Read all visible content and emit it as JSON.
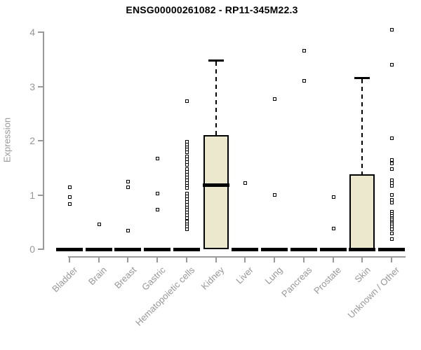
{
  "chart_data": {
    "type": "boxplot-scatter",
    "title": "ENSG00000261082 - RP11-345M22.3",
    "ylabel": "Expression",
    "ylim": [
      0,
      4
    ],
    "y_ticks": [
      0,
      1,
      2,
      3,
      4
    ],
    "grid": false,
    "legend": "none",
    "box_fill_color": "#ece8cd",
    "box_border_color": "#000000",
    "axis_color": "#9a9a9a",
    "tick_label_color": "#979797",
    "categories": [
      "Bladder",
      "Brain",
      "Breast",
      "Gastric",
      "Hematopoietic cells",
      "Kidney",
      "Liver",
      "Lung",
      "Pancreas",
      "Prostate",
      "Skin",
      "Unknown / Other"
    ],
    "series": [
      {
        "category": "Bladder",
        "q1": 0,
        "median": 0,
        "q3": 0,
        "whisker_high": 0,
        "points": [
          1.15,
          0.97,
          0.84
        ]
      },
      {
        "category": "Brain",
        "q1": 0,
        "median": 0,
        "q3": 0,
        "whisker_high": 0,
        "points": [
          0.46
        ]
      },
      {
        "category": "Breast",
        "q1": 0,
        "median": 0,
        "q3": 0,
        "whisker_high": 0,
        "points": [
          1.25,
          1.15,
          0.35
        ]
      },
      {
        "category": "Gastric",
        "q1": 0,
        "median": 0,
        "q3": 0,
        "whisker_high": 0,
        "points": [
          1.68,
          1.03,
          0.74
        ]
      },
      {
        "category": "Hematopoietic cells",
        "q1": 0,
        "median": 0,
        "q3": 0,
        "whisker_high": 0,
        "points": [
          2.74,
          1.99,
          1.94,
          1.89,
          1.84,
          1.8,
          1.71,
          1.66,
          1.61,
          1.56,
          1.48,
          1.43,
          1.38,
          1.33,
          1.28,
          1.23,
          1.18,
          1.13,
          1.03,
          0.98,
          0.93,
          0.88,
          0.83,
          0.78,
          0.73,
          0.68,
          0.63,
          0.58,
          0.52,
          0.47,
          0.42,
          0.37
        ]
      },
      {
        "category": "Kidney",
        "q1": 0,
        "median": 1.19,
        "q3": 2.1,
        "whisker_high": 3.48,
        "points": []
      },
      {
        "category": "Liver",
        "q1": 0,
        "median": 0,
        "q3": 0,
        "whisker_high": 0,
        "points": [
          1.23
        ]
      },
      {
        "category": "Lung",
        "q1": 0,
        "median": 0,
        "q3": 0,
        "whisker_high": 0,
        "points": [
          2.77,
          1.01
        ]
      },
      {
        "category": "Pancreas",
        "q1": 0,
        "median": 0,
        "q3": 0,
        "whisker_high": 0,
        "points": [
          3.66,
          3.11
        ]
      },
      {
        "category": "Prostate",
        "q1": 0,
        "median": 0,
        "q3": 0,
        "whisker_high": 0,
        "points": [
          0.97,
          0.39
        ]
      },
      {
        "category": "Skin",
        "q1": 0,
        "median": 0,
        "q3": 1.38,
        "whisker_high": 3.16,
        "points": []
      },
      {
        "category": "Unknown / Other",
        "q1": 0,
        "median": 0,
        "q3": 0,
        "whisker_high": 0,
        "points": [
          4.05,
          3.41,
          2.05,
          1.65,
          1.59,
          1.48,
          1.28,
          1.22,
          1.17,
          1.01,
          0.92,
          0.86,
          0.7,
          0.66,
          0.62,
          0.58,
          0.55,
          0.52,
          0.49,
          0.46,
          0.43,
          0.38,
          0.3,
          0.2
        ]
      }
    ]
  }
}
